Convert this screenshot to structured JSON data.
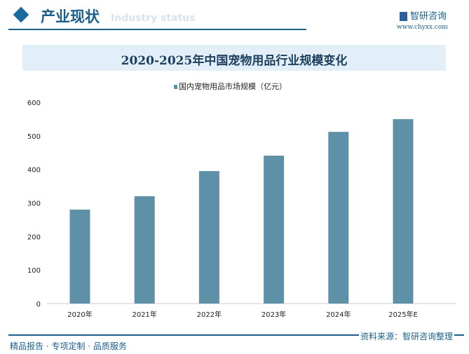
{
  "header": {
    "title": "产业现状",
    "ghost": "Industry status",
    "logo": "智研咨询",
    "url": "www.chyxx.com"
  },
  "colors": {
    "bar": "#5e91a8",
    "accent": "#1b5f8c",
    "band": "#e3eff8"
  },
  "chart_data": {
    "type": "bar",
    "title": "2020-2025年中国宠物用品行业规模变化",
    "categories": [
      "2020年",
      "2021年",
      "2022年",
      "2023年",
      "2024年",
      "2025年E"
    ],
    "series": [
      {
        "name": "国内宠物用品市场规模（亿元）",
        "values": [
          280,
          320,
          395,
          441,
          512,
          550
        ]
      }
    ],
    "ylim": [
      0,
      600
    ],
    "yticks": [
      0,
      100,
      200,
      300,
      400,
      500,
      600
    ],
    "legend": "top",
    "grid": false
  },
  "footer": {
    "left": "精品报告 · 专项定制 · 品质服务",
    "source": "资料来源：智研咨询整理"
  }
}
